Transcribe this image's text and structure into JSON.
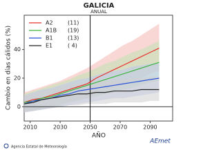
{
  "chart_data": {
    "type": "line",
    "title": "GALICIA",
    "subtitle": "ANUAL",
    "x_label": "AÑO",
    "y_label": "Cambio en días cálidos (%)",
    "x": [
      2006,
      2012,
      2018,
      2024,
      2030,
      2036,
      2042,
      2048,
      2054,
      2060,
      2066,
      2072,
      2078,
      2084,
      2090,
      2096
    ],
    "series": [
      {
        "name": "A2",
        "members": {
          "value": 11,
          "label": "(11)"
        },
        "color": "#e8302a",
        "band_color": "#f4b6b0",
        "values": [
          3,
          5,
          6,
          8,
          10,
          12,
          14,
          16,
          20,
          23,
          26,
          29,
          32,
          35,
          38,
          41
        ],
        "lower": [
          -4,
          -2,
          -1,
          0,
          2,
          3,
          5,
          6,
          9,
          11,
          13,
          16,
          18,
          20,
          23,
          25
        ],
        "upper": [
          10,
          12,
          14,
          16,
          18,
          21,
          24,
          27,
          31,
          35,
          39,
          43,
          46,
          50,
          54,
          58
        ]
      },
      {
        "name": "A1B",
        "members": {
          "value": 19,
          "label": "(19)"
        },
        "color": "#3cb43c",
        "band_color": "#bfe3b5",
        "values": [
          3,
          4,
          6,
          7,
          9,
          11,
          13,
          15,
          17,
          19,
          21,
          23,
          25,
          27,
          29,
          31
        ],
        "lower": [
          -3,
          -3,
          -1,
          0,
          1,
          3,
          4,
          6,
          7,
          9,
          10,
          12,
          13,
          15,
          17,
          18
        ],
        "upper": [
          9,
          11,
          13,
          15,
          17,
          19,
          22,
          24,
          27,
          30,
          32,
          35,
          38,
          40,
          43,
          46
        ]
      },
      {
        "name": "B1",
        "members": {
          "value": 13,
          "label": "(13)"
        },
        "color": "#2850d8",
        "band_color": "#bcc8ee",
        "values": [
          2,
          4,
          5,
          6,
          8,
          9,
          11,
          12,
          13,
          14,
          15,
          16,
          17,
          18,
          19,
          20
        ],
        "lower": [
          -4,
          -3,
          -2,
          -1,
          0,
          1,
          2,
          3,
          4,
          5,
          6,
          6,
          7,
          8,
          9,
          10
        ],
        "upper": [
          8,
          10,
          12,
          13,
          15,
          17,
          19,
          20,
          22,
          24,
          25,
          26,
          28,
          29,
          30,
          31
        ]
      },
      {
        "name": "E1",
        "members": {
          "value": 4,
          "label": "( 4)"
        },
        "color": "#222222",
        "band_color": "#cfcfcf",
        "values": [
          2,
          3,
          5,
          6,
          7,
          8,
          9,
          9,
          10,
          10,
          11,
          11,
          11,
          12,
          12,
          12
        ],
        "lower": [
          -4,
          -3,
          -2,
          -1,
          0,
          1,
          1,
          2,
          2,
          2,
          3,
          3,
          3,
          3,
          4,
          4
        ],
        "upper": [
          8,
          9,
          11,
          12,
          14,
          15,
          16,
          17,
          18,
          18,
          19,
          19,
          20,
          20,
          21,
          21
        ]
      }
    ],
    "xlim": [
      2006,
      2105
    ],
    "xticks": [
      2010,
      2030,
      2050,
      2070,
      2090
    ],
    "ylim": [
      -10,
      64
    ],
    "yticks": [
      0,
      20,
      40
    ],
    "marker_x": 2050,
    "legend": "top-left",
    "source": "Agencia Estatal de Meteorología",
    "logo": "AEmet"
  }
}
